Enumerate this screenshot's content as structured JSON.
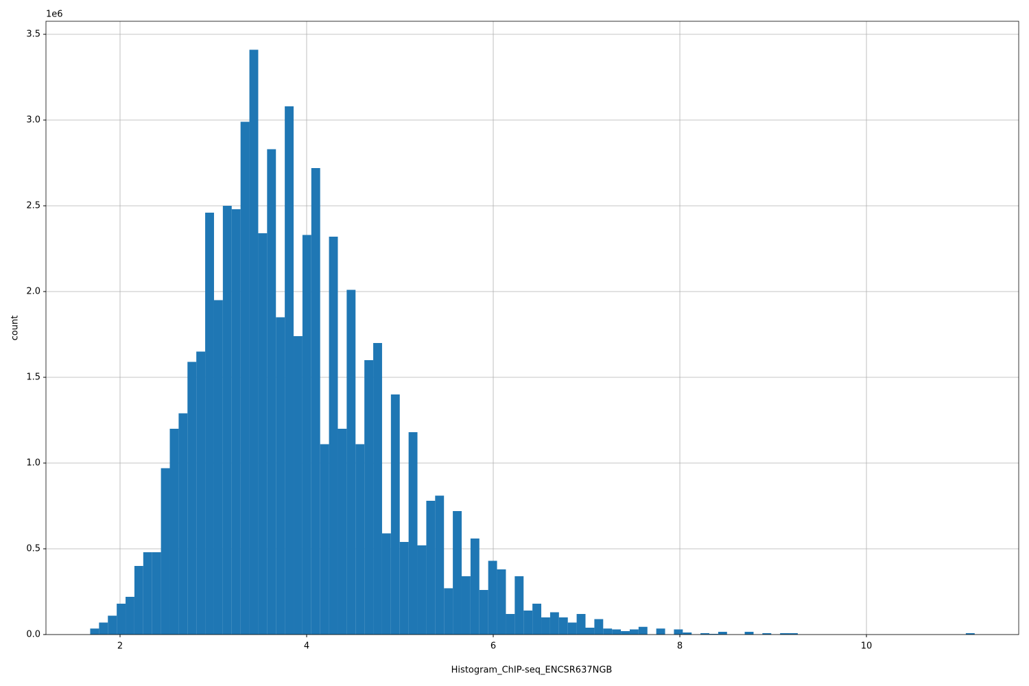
{
  "chart_data": {
    "type": "histogram",
    "x_label": "Histogram_ChIP-seq_ENCSR637NGB",
    "y_label": "count",
    "y_offset_label": "1e6",
    "color": "#1f77b4",
    "grid": true,
    "bins": [
      1.68,
      1.7748,
      1.8696,
      1.9644,
      2.0592,
      2.154,
      2.2488,
      2.3436,
      2.4384,
      2.5332,
      2.628,
      2.7228,
      2.8176,
      2.9124,
      3.0072,
      3.102,
      3.1968,
      3.2916,
      3.3864,
      3.4812,
      3.576,
      3.6708,
      3.7656,
      3.8604,
      3.9552,
      4.05,
      4.1448,
      4.2396,
      4.3344,
      4.4292,
      4.524,
      4.6188,
      4.7136,
      4.8084,
      4.9032,
      4.998,
      5.0928,
      5.1876,
      5.2824,
      5.3772,
      5.472,
      5.5668,
      5.6616,
      5.7564,
      5.8512,
      5.946,
      6.0408,
      6.1356,
      6.2304,
      6.3252,
      6.42,
      6.5148,
      6.6096,
      6.7044,
      6.7992,
      6.894,
      6.9888,
      7.0836,
      7.1784,
      7.2732,
      7.368,
      7.4628,
      7.5576,
      7.6524,
      7.7472,
      7.842,
      7.9368,
      8.0316,
      8.1264,
      8.2212,
      8.316,
      8.4108,
      8.5056,
      8.6004,
      8.6952,
      8.79,
      8.8848,
      8.9796,
      9.0744,
      9.1692,
      9.264,
      9.3588,
      9.4536,
      9.5484,
      9.6432,
      9.738,
      9.8328,
      9.9276,
      10.0224,
      10.1172,
      10.212,
      10.3068,
      10.4016,
      10.4964,
      10.5912,
      10.686,
      10.7808,
      10.8756,
      10.9704,
      11.0652,
      11.16
    ],
    "values": [
      0.035,
      0.07,
      0.11,
      0.18,
      0.22,
      0.4,
      0.48,
      0.48,
      0.97,
      1.2,
      1.29,
      1.59,
      1.65,
      2.46,
      1.95,
      2.5,
      2.48,
      2.99,
      3.41,
      2.34,
      2.83,
      1.85,
      3.08,
      1.74,
      2.33,
      2.72,
      1.11,
      2.32,
      1.2,
      2.01,
      1.11,
      1.6,
      1.7,
      0.59,
      1.4,
      0.54,
      1.18,
      0.52,
      0.78,
      0.81,
      0.27,
      0.72,
      0.34,
      0.56,
      0.26,
      0.43,
      0.38,
      0.12,
      0.34,
      0.14,
      0.18,
      0.1,
      0.13,
      0.1,
      0.07,
      0.12,
      0.04,
      0.09,
      0.035,
      0.03,
      0.02,
      0.03,
      0.045,
      0,
      0.035,
      0,
      0.03,
      0.012,
      0,
      0.008,
      0.004,
      0.016,
      0,
      0,
      0.016,
      0,
      0.008,
      0,
      0.008,
      0.008,
      0,
      0,
      0,
      0,
      0,
      0,
      0,
      0,
      0,
      0,
      0,
      0,
      0,
      0,
      0,
      0,
      0,
      0,
      0,
      0.008
    ],
    "xlim": [
      1.206,
      11.632
    ],
    "xticks": [
      2,
      4,
      6,
      8,
      10
    ],
    "ylim": [
      0,
      3.576
    ],
    "yticks": [
      {
        "value": 0,
        "label": "0.0"
      },
      {
        "value": 0.5,
        "label": "0.5"
      },
      {
        "value": 1,
        "label": "1.0"
      },
      {
        "value": 1.5,
        "label": "1.5"
      },
      {
        "value": 2,
        "label": "2.0"
      },
      {
        "value": 2.5,
        "label": "2.5"
      },
      {
        "value": 3,
        "label": "3.0"
      },
      {
        "value": 3.5,
        "label": "3.5"
      }
    ]
  }
}
